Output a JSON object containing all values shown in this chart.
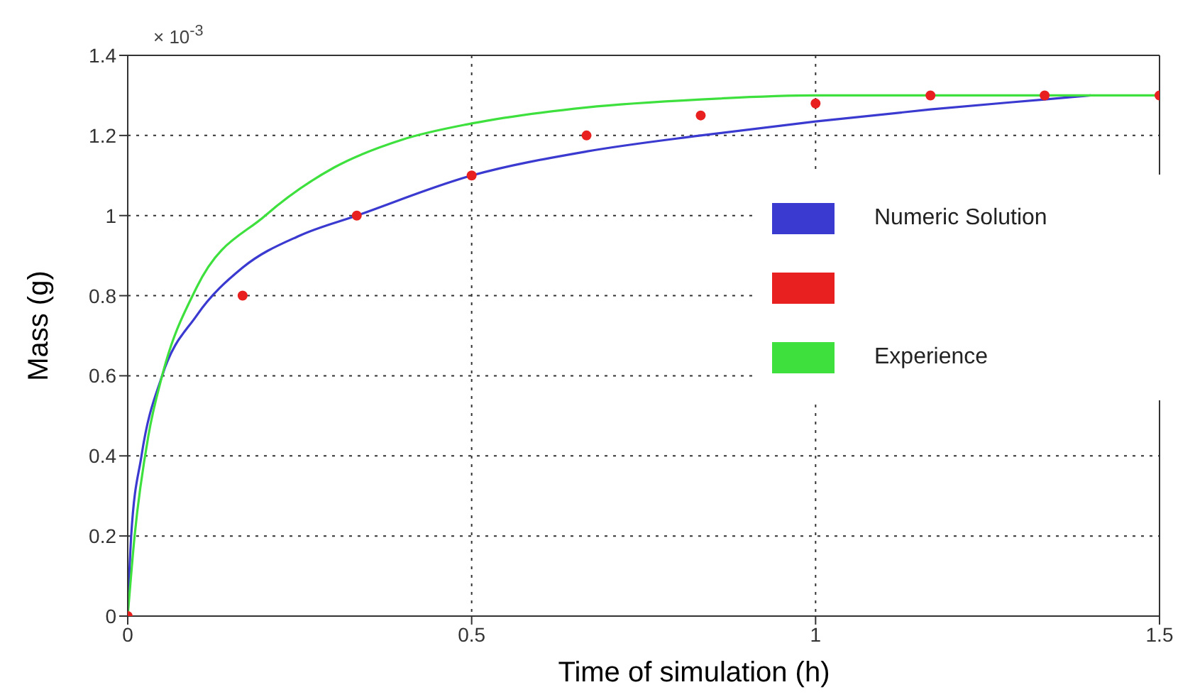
{
  "chart_data": {
    "type": "line",
    "xlabel": "Time of simulation (h)",
    "ylabel": "Mass (g)",
    "annotations": [
      "× 10$^{-3}$"
    ],
    "xlim": [
      0,
      1.5
    ],
    "xticks": [
      0,
      0.5,
      1,
      1.5
    ],
    "ylim": [
      0,
      1.4
    ],
    "yticks": [
      0,
      0.2,
      0.4,
      0.6,
      0.8,
      1,
      1.2,
      1.4
    ],
    "grid": true,
    "legend": "right",
    "series": [
      {
        "name": "Numeric Solution",
        "color": "#3a3ad0",
        "marker": "none",
        "line_style": "solid",
        "x": [
          0,
          0.005,
          0.02,
          0.05,
          0.1,
          0.167,
          0.25,
          0.333,
          0.5,
          0.667,
          0.833,
          1.0,
          1.167,
          1.333,
          1.4
        ],
        "values": [
          0,
          0.2,
          0.4,
          0.6,
          0.75,
          0.87,
          0.95,
          1.0,
          1.1,
          1.16,
          1.2,
          1.235,
          1.265,
          1.29,
          1.3
        ]
      },
      {
        "type": "scatter",
        "color": "#e82020",
        "marker": "circle",
        "x": [
          0,
          0.167,
          0.333,
          0.5,
          0.667,
          0.833,
          1.0,
          1.167,
          1.333,
          1.5
        ],
        "values": [
          0,
          0.8,
          1.0,
          1.1,
          1.2,
          1.25,
          1.28,
          1.3,
          1.3,
          1.3
        ]
      },
      {
        "name": "Experience",
        "color": "#3ee03e",
        "marker": "none",
        "line_style": "solid",
        "x": [
          0,
          0.01,
          0.03,
          0.05,
          0.1,
          0.2,
          0.3,
          0.4,
          0.5,
          0.667,
          0.833,
          1.0,
          1.5
        ],
        "values": [
          0,
          0.2,
          0.45,
          0.6,
          0.82,
          1.0,
          1.12,
          1.19,
          1.23,
          1.27,
          1.29,
          1.3,
          1.3
        ]
      }
    ]
  }
}
